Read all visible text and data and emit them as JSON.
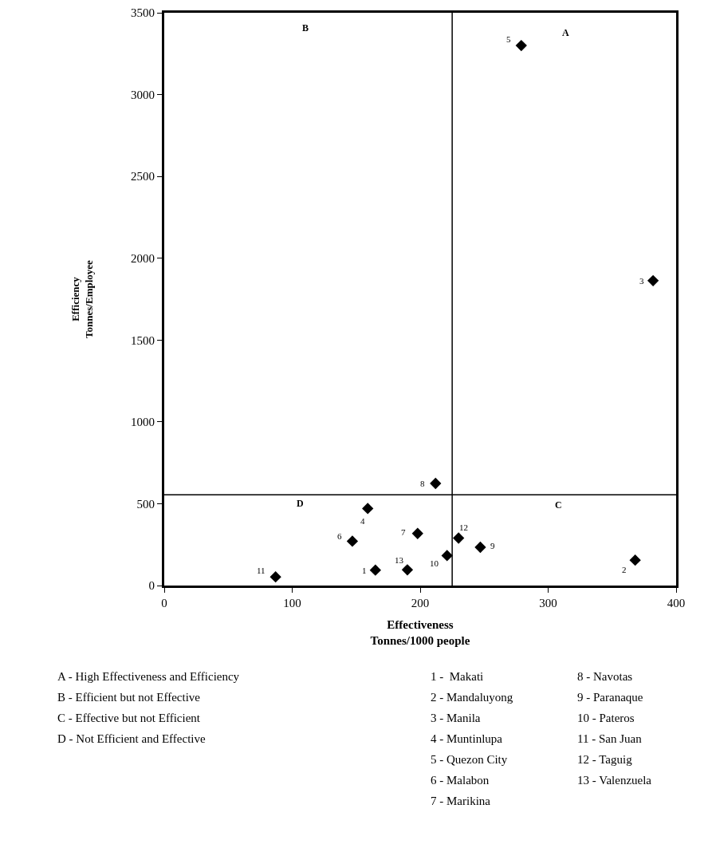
{
  "chart_data": {
    "type": "scatter",
    "xlabel": "Effectiveness\nTonnes/1000 people",
    "ylabel": "Efficiency\nTonnes/Employee",
    "x": [
      165,
      368,
      382,
      159,
      279,
      147,
      198,
      212,
      247,
      221,
      87,
      230,
      190
    ],
    "values": [
      94,
      155,
      1863,
      471,
      3300,
      271,
      318,
      624,
      234,
      183,
      53,
      290,
      96
    ],
    "color": "#000000",
    "marker": "diamond",
    "xlim": [
      0,
      400
    ],
    "xticks": [
      0,
      100,
      200,
      300,
      400
    ],
    "ylim": [
      0,
      3500
    ],
    "yticks": [
      0,
      500,
      1000,
      1500,
      2000,
      2500,
      3000,
      3500
    ],
    "ref_lines": [
      {
        "axis": "x",
        "value": 225,
        "color": "#000000"
      },
      {
        "axis": "y",
        "value": 555,
        "color": "#000000"
      }
    ],
    "annotations": [
      {
        "text": "1",
        "x": 165,
        "y": 94
      },
      {
        "text": "2",
        "x": 368,
        "y": 155
      },
      {
        "text": "3",
        "x": 382,
        "y": 1863
      },
      {
        "text": "4",
        "x": 159,
        "y": 471
      },
      {
        "text": "5",
        "x": 279,
        "y": 3300
      },
      {
        "text": "6",
        "x": 147,
        "y": 271
      },
      {
        "text": "7",
        "x": 198,
        "y": 318
      },
      {
        "text": "8",
        "x": 212,
        "y": 624
      },
      {
        "text": "9",
        "x": 247,
        "y": 234
      },
      {
        "text": "10",
        "x": 221,
        "y": 183
      },
      {
        "text": "11",
        "x": 87,
        "y": 53
      },
      {
        "text": "12",
        "x": 230,
        "y": 290
      },
      {
        "text": "13",
        "x": 190,
        "y": 96
      },
      "A",
      "B",
      "C",
      "D",
      "A - High Effectiveness and Efficiency",
      "B - Efficient but not Effective",
      "C - Effective but not Efficient",
      "D - Not Efficient and Effective",
      "1 -  Makati",
      "2 - Mandaluyong",
      "3 - Manila",
      "4 - Muntinlupa",
      "5 - Quezon City",
      "6 - Malabon",
      "7 - Marikina",
      "8 - Navotas",
      "9 - Paranaque",
      "10 - Pateros",
      "11 - San Juan",
      "12 - Taguig",
      "13 - Valenzuela"
    ]
  }
}
